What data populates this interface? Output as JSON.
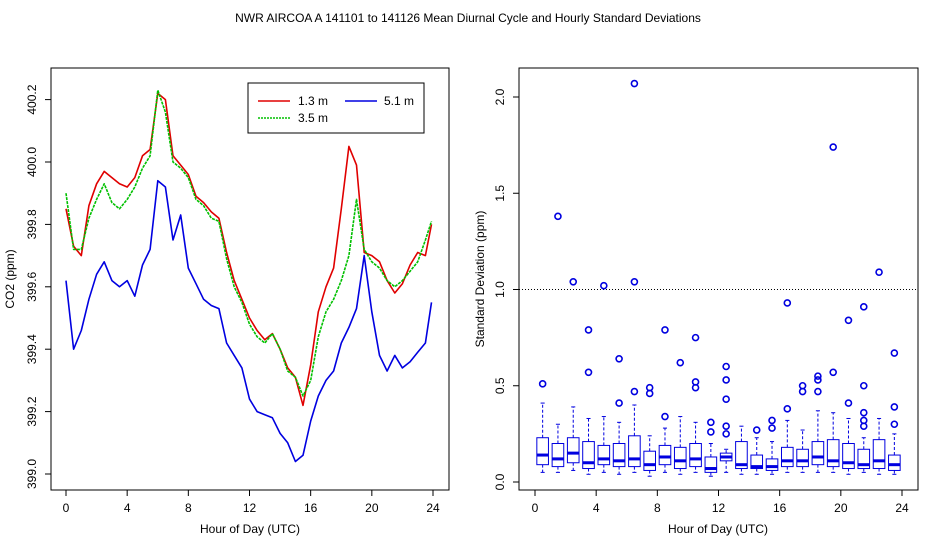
{
  "title": "NWR   AIRCOA A   141101 to 141126   Mean Diurnal Cycle and Hourly Standard Deviations",
  "colors": {
    "h13": "#e00000",
    "h35": "#00c000",
    "h51": "#0000e0",
    "box": "#0000e0",
    "axis": "#000000"
  },
  "chart_data": [
    {
      "type": "line",
      "xlabel": "Hour of Day (UTC)",
      "ylabel": "CO2 (ppm)",
      "xlim": [
        0,
        24
      ],
      "ylim": [
        399.0,
        400.25
      ],
      "xticks": [
        0,
        4,
        8,
        12,
        16,
        20,
        24
      ],
      "yticks": [
        399.0,
        399.2,
        399.4,
        399.6,
        399.8,
        400.0,
        400.2
      ],
      "ytick_labels": [
        "399.0",
        "399.2",
        "399.4",
        "399.6",
        "399.8",
        "400.0",
        "400.2"
      ],
      "legend": {
        "position": "top-right",
        "entries": [
          "1.3 m",
          "5.1 m",
          "3.5 m"
        ]
      },
      "series": [
        {
          "name": "1.3 m",
          "color": "#e00000",
          "x": [
            0,
            0.5,
            1,
            1.5,
            2,
            2.5,
            3,
            3.5,
            4,
            4.5,
            5,
            5.5,
            6,
            6.5,
            7,
            7.5,
            8,
            8.5,
            9,
            9.5,
            10,
            10.5,
            11,
            11.5,
            12,
            12.5,
            13,
            13.5,
            14,
            14.5,
            15,
            15.5,
            16,
            16.5,
            17,
            17.5,
            18,
            18.5,
            19,
            19.5,
            20,
            20.5,
            21,
            21.5,
            22,
            22.5,
            23,
            23.5,
            23.9
          ],
          "y": [
            399.85,
            399.73,
            399.7,
            399.86,
            399.93,
            399.97,
            399.95,
            399.93,
            399.92,
            399.95,
            400.02,
            400.04,
            400.22,
            400.2,
            400.02,
            399.99,
            399.96,
            399.89,
            399.87,
            399.84,
            399.82,
            399.71,
            399.62,
            399.56,
            399.5,
            399.46,
            399.43,
            399.45,
            399.4,
            399.34,
            399.31,
            399.22,
            399.35,
            399.52,
            399.6,
            399.66,
            399.85,
            400.05,
            399.99,
            399.71,
            399.7,
            399.68,
            399.62,
            399.58,
            399.61,
            399.67,
            399.71,
            399.7,
            399.8
          ]
        },
        {
          "name": "3.5 m",
          "color": "#00c000",
          "x": [
            0,
            0.5,
            1,
            1.5,
            2,
            2.5,
            3,
            3.5,
            4,
            4.5,
            5,
            5.5,
            6,
            6.5,
            7,
            7.5,
            8,
            8.5,
            9,
            9.5,
            10,
            10.5,
            11,
            11.5,
            12,
            12.5,
            13,
            13.5,
            14,
            14.5,
            15,
            15.5,
            16,
            16.5,
            17,
            17.5,
            18,
            18.5,
            19,
            19.5,
            20,
            20.5,
            21,
            21.5,
            22,
            22.5,
            23,
            23.5,
            23.9
          ],
          "y": [
            399.9,
            399.72,
            399.72,
            399.82,
            399.88,
            399.93,
            399.87,
            399.85,
            399.88,
            399.92,
            399.98,
            400.02,
            400.23,
            400.16,
            400.0,
            399.98,
            399.95,
            399.88,
            399.86,
            399.82,
            399.81,
            399.69,
            399.6,
            399.55,
            399.48,
            399.44,
            399.42,
            399.45,
            399.4,
            399.33,
            399.31,
            399.25,
            399.3,
            399.44,
            399.52,
            399.56,
            399.62,
            399.7,
            399.88,
            399.72,
            399.68,
            399.66,
            399.62,
            399.6,
            399.62,
            399.65,
            399.68,
            399.75,
            399.81
          ]
        },
        {
          "name": "5.1 m",
          "color": "#0000e0",
          "x": [
            0,
            0.5,
            1,
            1.5,
            2,
            2.5,
            3,
            3.5,
            4,
            4.5,
            5,
            5.5,
            6,
            6.5,
            7,
            7.5,
            8,
            8.5,
            9,
            9.5,
            10,
            10.5,
            11,
            11.5,
            12,
            12.5,
            13,
            13.5,
            14,
            14.5,
            15,
            15.5,
            16,
            16.5,
            17,
            17.5,
            18,
            18.5,
            19,
            19.5,
            20,
            20.5,
            21,
            21.5,
            22,
            22.5,
            23,
            23.5,
            23.9
          ],
          "y": [
            399.62,
            399.4,
            399.46,
            399.56,
            399.64,
            399.68,
            399.62,
            399.6,
            399.62,
            399.57,
            399.67,
            399.72,
            399.94,
            399.92,
            399.75,
            399.83,
            399.66,
            399.61,
            399.56,
            399.54,
            399.53,
            399.42,
            399.38,
            399.34,
            399.24,
            399.2,
            399.19,
            399.18,
            399.13,
            399.1,
            399.04,
            399.06,
            399.17,
            399.25,
            399.3,
            399.33,
            399.42,
            399.47,
            399.53,
            399.7,
            399.52,
            399.38,
            399.33,
            399.38,
            399.34,
            399.36,
            399.39,
            399.42,
            399.55
          ]
        }
      ]
    },
    {
      "type": "box",
      "xlabel": "Hour of Day (UTC)",
      "ylabel": "Standard Deviation (ppm)",
      "xlim": [
        0,
        24
      ],
      "ylim": [
        0,
        2.15
      ],
      "xticks": [
        0,
        4,
        8,
        12,
        16,
        20,
        24
      ],
      "yticks": [
        0.0,
        0.5,
        1.0,
        1.5,
        2.0
      ],
      "ytick_labels": [
        "0.0",
        "0.5",
        "1.0",
        "1.5",
        "2.0"
      ],
      "reference_line": 1.0,
      "boxes": [
        {
          "hour": 0.5,
          "whisker_low": 0.05,
          "q1": 0.09,
          "median": 0.14,
          "q3": 0.23,
          "whisker_high": 0.41,
          "outliers": [
            0.51
          ]
        },
        {
          "hour": 1.5,
          "whisker_low": 0.05,
          "q1": 0.08,
          "median": 0.12,
          "q3": 0.2,
          "whisker_high": 0.3,
          "outliers": [
            1.38
          ]
        },
        {
          "hour": 2.5,
          "whisker_low": 0.06,
          "q1": 0.1,
          "median": 0.15,
          "q3": 0.23,
          "whisker_high": 0.39,
          "outliers": [
            1.04
          ]
        },
        {
          "hour": 3.5,
          "whisker_low": 0.04,
          "q1": 0.07,
          "median": 0.1,
          "q3": 0.21,
          "whisker_high": 0.33,
          "outliers": [
            0.57,
            0.79
          ]
        },
        {
          "hour": 4.5,
          "whisker_low": 0.05,
          "q1": 0.09,
          "median": 0.12,
          "q3": 0.19,
          "whisker_high": 0.34,
          "outliers": [
            1.02
          ]
        },
        {
          "hour": 5.5,
          "whisker_low": 0.04,
          "q1": 0.08,
          "median": 0.11,
          "q3": 0.2,
          "whisker_high": 0.31,
          "outliers": [
            0.41,
            0.64
          ]
        },
        {
          "hour": 6.5,
          "whisker_low": 0.05,
          "q1": 0.08,
          "median": 0.12,
          "q3": 0.24,
          "whisker_high": 0.4,
          "outliers": [
            0.47,
            1.04,
            2.07
          ]
        },
        {
          "hour": 7.5,
          "whisker_low": 0.03,
          "q1": 0.06,
          "median": 0.09,
          "q3": 0.16,
          "whisker_high": 0.24,
          "outliers": [
            0.46,
            0.49
          ]
        },
        {
          "hour": 8.5,
          "whisker_low": 0.05,
          "q1": 0.09,
          "median": 0.13,
          "q3": 0.19,
          "whisker_high": 0.28,
          "outliers": [
            0.34,
            0.79
          ]
        },
        {
          "hour": 9.5,
          "whisker_low": 0.04,
          "q1": 0.07,
          "median": 0.11,
          "q3": 0.18,
          "whisker_high": 0.34,
          "outliers": [
            0.62
          ]
        },
        {
          "hour": 10.5,
          "whisker_low": 0.05,
          "q1": 0.08,
          "median": 0.12,
          "q3": 0.2,
          "whisker_high": 0.31,
          "outliers": [
            0.49,
            0.52,
            0.75
          ]
        },
        {
          "hour": 11.5,
          "whisker_low": 0.03,
          "q1": 0.05,
          "median": 0.07,
          "q3": 0.13,
          "whisker_high": 0.2,
          "outliers": [
            0.26,
            0.31
          ]
        },
        {
          "hour": 12.5,
          "whisker_low": 0.05,
          "q1": 0.11,
          "median": 0.13,
          "q3": 0.15,
          "whisker_high": 0.17,
          "outliers": [
            0.25,
            0.29,
            0.43,
            0.53,
            0.6
          ]
        },
        {
          "hour": 13.5,
          "whisker_low": 0.04,
          "q1": 0.07,
          "median": 0.09,
          "q3": 0.21,
          "whisker_high": 0.29,
          "outliers": []
        },
        {
          "hour": 14.5,
          "whisker_low": 0.04,
          "q1": 0.07,
          "median": 0.08,
          "q3": 0.14,
          "whisker_high": 0.23,
          "outliers": [
            0.27
          ]
        },
        {
          "hour": 15.5,
          "whisker_low": 0.04,
          "q1": 0.06,
          "median": 0.08,
          "q3": 0.12,
          "whisker_high": 0.21,
          "outliers": [
            0.28,
            0.32
          ]
        },
        {
          "hour": 16.5,
          "whisker_low": 0.05,
          "q1": 0.08,
          "median": 0.11,
          "q3": 0.18,
          "whisker_high": 0.32,
          "outliers": [
            0.38,
            0.93
          ]
        },
        {
          "hour": 17.5,
          "whisker_low": 0.05,
          "q1": 0.08,
          "median": 0.11,
          "q3": 0.17,
          "whisker_high": 0.27,
          "outliers": [
            0.47,
            0.5
          ]
        },
        {
          "hour": 18.5,
          "whisker_low": 0.05,
          "q1": 0.09,
          "median": 0.13,
          "q3": 0.21,
          "whisker_high": 0.37,
          "outliers": [
            0.47,
            0.53,
            0.55
          ]
        },
        {
          "hour": 19.5,
          "whisker_low": 0.05,
          "q1": 0.08,
          "median": 0.11,
          "q3": 0.22,
          "whisker_high": 0.36,
          "outliers": [
            0.57,
            1.74
          ]
        },
        {
          "hour": 20.5,
          "whisker_low": 0.04,
          "q1": 0.07,
          "median": 0.1,
          "q3": 0.2,
          "whisker_high": 0.33,
          "outliers": [
            0.41,
            0.84
          ]
        },
        {
          "hour": 21.5,
          "whisker_low": 0.05,
          "q1": 0.07,
          "median": 0.09,
          "q3": 0.17,
          "whisker_high": 0.23,
          "outliers": [
            0.29,
            0.32,
            0.36,
            0.5,
            0.91
          ]
        },
        {
          "hour": 22.5,
          "whisker_low": 0.04,
          "q1": 0.07,
          "median": 0.11,
          "q3": 0.22,
          "whisker_high": 0.33,
          "outliers": [
            1.09
          ]
        },
        {
          "hour": 23.5,
          "whisker_low": 0.04,
          "q1": 0.06,
          "median": 0.09,
          "q3": 0.14,
          "whisker_high": 0.25,
          "outliers": [
            0.3,
            0.39,
            0.67
          ]
        }
      ]
    }
  ]
}
